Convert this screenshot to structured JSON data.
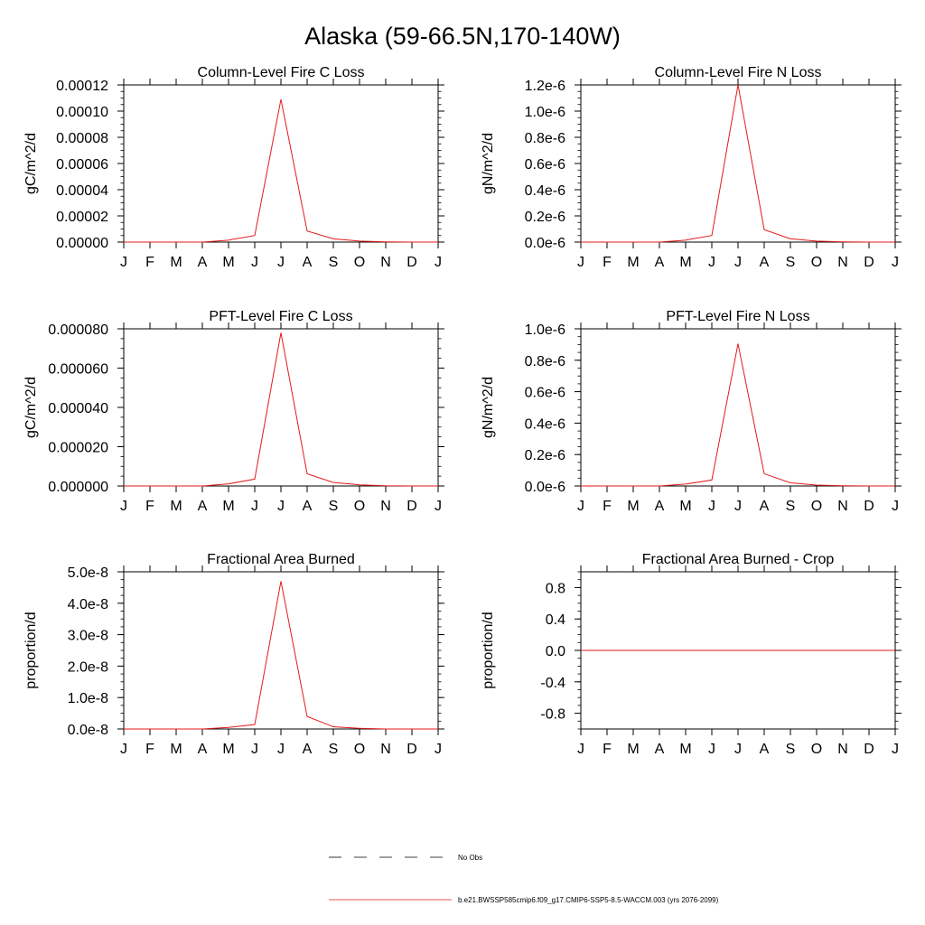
{
  "page_title": "Alaska (59-66.5N,170-140W)",
  "colors": {
    "model_line": "#e41a1c",
    "obs_line": "#000000",
    "axis": "#000000"
  },
  "legend": {
    "obs_label": "No Obs",
    "model_label": "b.e21.BWSSP585cmip6.f09_g17.CMIP6-SSP5-8.5-WACCM.003 (yrs 2076-2099)"
  },
  "chart_data": [
    {
      "type": "line",
      "title": "Column-Level Fire C Loss",
      "ylabel": "gC/m^2/d",
      "xlabel": "",
      "categories": [
        "J",
        "F",
        "M",
        "A",
        "M",
        "J",
        "J",
        "A",
        "S",
        "O",
        "N",
        "D",
        "J"
      ],
      "ylim": [
        0,
        0.00012
      ],
      "yticks": [
        0,
        2e-05,
        4e-05,
        6e-05,
        8e-05,
        0.0001,
        0.00012
      ],
      "ytick_labels": [
        "0.00000",
        "0.00002",
        "0.00004",
        "0.00006",
        "0.00008",
        "0.00010",
        "0.00012"
      ],
      "series": [
        {
          "name": "b.e21.BWSSP585cmip6.f09_g17.CMIP6-SSP5-8.5-WACCM.003 (yrs 2076-2099)",
          "values": [
            0,
            0,
            0,
            0,
            1.5e-06,
            5e-06,
            0.000109,
            8.5e-06,
            2.5e-06,
            8e-07,
            2e-07,
            0,
            0
          ]
        }
      ]
    },
    {
      "type": "line",
      "title": "Column-Level Fire N Loss",
      "ylabel": "gN/m^2/d",
      "xlabel": "",
      "categories": [
        "J",
        "F",
        "M",
        "A",
        "M",
        "J",
        "J",
        "A",
        "S",
        "O",
        "N",
        "D",
        "J"
      ],
      "ylim": [
        0,
        1.2e-06
      ],
      "yticks": [
        0,
        2e-07,
        4e-07,
        6e-07,
        8e-07,
        1e-06,
        1.2e-06
      ],
      "ytick_labels": [
        "0.0e-6",
        "0.2e-6",
        "0.4e-6",
        "0.6e-6",
        "0.8e-6",
        "1.0e-6",
        "1.2e-6"
      ],
      "series": [
        {
          "name": "b.e21.BWSSP585cmip6.f09_g17.CMIP6-SSP5-8.5-WACCM.003 (yrs 2076-2099)",
          "values": [
            0,
            0,
            0,
            0,
            1.5e-08,
            5e-08,
            1.2e-06,
            9.5e-08,
            2.5e-08,
            8e-09,
            2e-09,
            0,
            0
          ]
        }
      ]
    },
    {
      "type": "line",
      "title": "PFT-Level Fire C Loss",
      "ylabel": "gC/m^2/d",
      "xlabel": "",
      "categories": [
        "J",
        "F",
        "M",
        "A",
        "M",
        "J",
        "J",
        "A",
        "S",
        "O",
        "N",
        "D",
        "J"
      ],
      "ylim": [
        0,
        8e-05
      ],
      "yticks": [
        0,
        2e-05,
        4e-05,
        6e-05,
        8e-05
      ],
      "ytick_labels": [
        "0.000000",
        "0.000020",
        "0.000040",
        "0.000060",
        "0.000080"
      ],
      "series": [
        {
          "name": "b.e21.BWSSP585cmip6.f09_g17.CMIP6-SSP5-8.5-WACCM.003 (yrs 2076-2099)",
          "values": [
            0,
            0,
            0,
            0,
            1.1e-06,
            3.5e-06,
            7.8e-05,
            6.2e-06,
            1.8e-06,
            6e-07,
            1e-07,
            0,
            0
          ]
        }
      ]
    },
    {
      "type": "line",
      "title": "PFT-Level Fire N Loss",
      "ylabel": "gN/m^2/d",
      "xlabel": "",
      "categories": [
        "J",
        "F",
        "M",
        "A",
        "M",
        "J",
        "J",
        "A",
        "S",
        "O",
        "N",
        "D",
        "J"
      ],
      "ylim": [
        0,
        1e-06
      ],
      "yticks": [
        0,
        2e-07,
        4e-07,
        6e-07,
        8e-07,
        1e-06
      ],
      "ytick_labels": [
        "0.0e-6",
        "0.2e-6",
        "0.4e-6",
        "0.6e-6",
        "0.8e-6",
        "1.0e-6"
      ],
      "series": [
        {
          "name": "b.e21.BWSSP585cmip6.f09_g17.CMIP6-SSP5-8.5-WACCM.003 (yrs 2076-2099)",
          "values": [
            0,
            0,
            0,
            0,
            1.2e-08,
            3.8e-08,
            9.05e-07,
            7.8e-08,
            2e-08,
            6e-09,
            1.5e-09,
            0,
            0
          ]
        }
      ]
    },
    {
      "type": "line",
      "title": "Fractional Area Burned",
      "ylabel": "proportion/d",
      "xlabel": "",
      "categories": [
        "J",
        "F",
        "M",
        "A",
        "M",
        "J",
        "J",
        "A",
        "S",
        "O",
        "N",
        "D",
        "J"
      ],
      "ylim": [
        0,
        5e-08
      ],
      "yticks": [
        0,
        1e-08,
        2e-08,
        3e-08,
        4e-08,
        5e-08
      ],
      "ytick_labels": [
        "0.0e-8",
        "1.0e-8",
        "2.0e-8",
        "3.0e-8",
        "4.0e-8",
        "5.0e-8"
      ],
      "series": [
        {
          "name": "b.e21.BWSSP585cmip6.f09_g17.CMIP6-SSP5-8.5-WACCM.003 (yrs 2076-2099)",
          "values": [
            0,
            0,
            0,
            0,
            5e-10,
            1.4e-09,
            4.7e-08,
            4e-09,
            7e-10,
            2e-10,
            0,
            0,
            0
          ]
        }
      ]
    },
    {
      "type": "line",
      "title": "Fractional Area Burned - Crop",
      "ylabel": "proportion/d",
      "xlabel": "",
      "categories": [
        "J",
        "F",
        "M",
        "A",
        "M",
        "J",
        "J",
        "A",
        "S",
        "O",
        "N",
        "D",
        "J"
      ],
      "ylim": [
        -1,
        1
      ],
      "yticks": [
        -0.8,
        -0.4,
        0,
        0.4,
        0.8
      ],
      "ytick_labels": [
        "-0.8",
        "-0.4",
        "0.0",
        "0.4",
        "0.8"
      ],
      "series": [
        {
          "name": "b.e21.BWSSP585cmip6.f09_g17.CMIP6-SSP5-8.5-WACCM.003 (yrs 2076-2099)",
          "values": [
            0,
            0,
            0,
            0,
            0,
            0,
            0,
            0,
            0,
            0,
            0,
            0,
            0
          ]
        }
      ]
    }
  ]
}
